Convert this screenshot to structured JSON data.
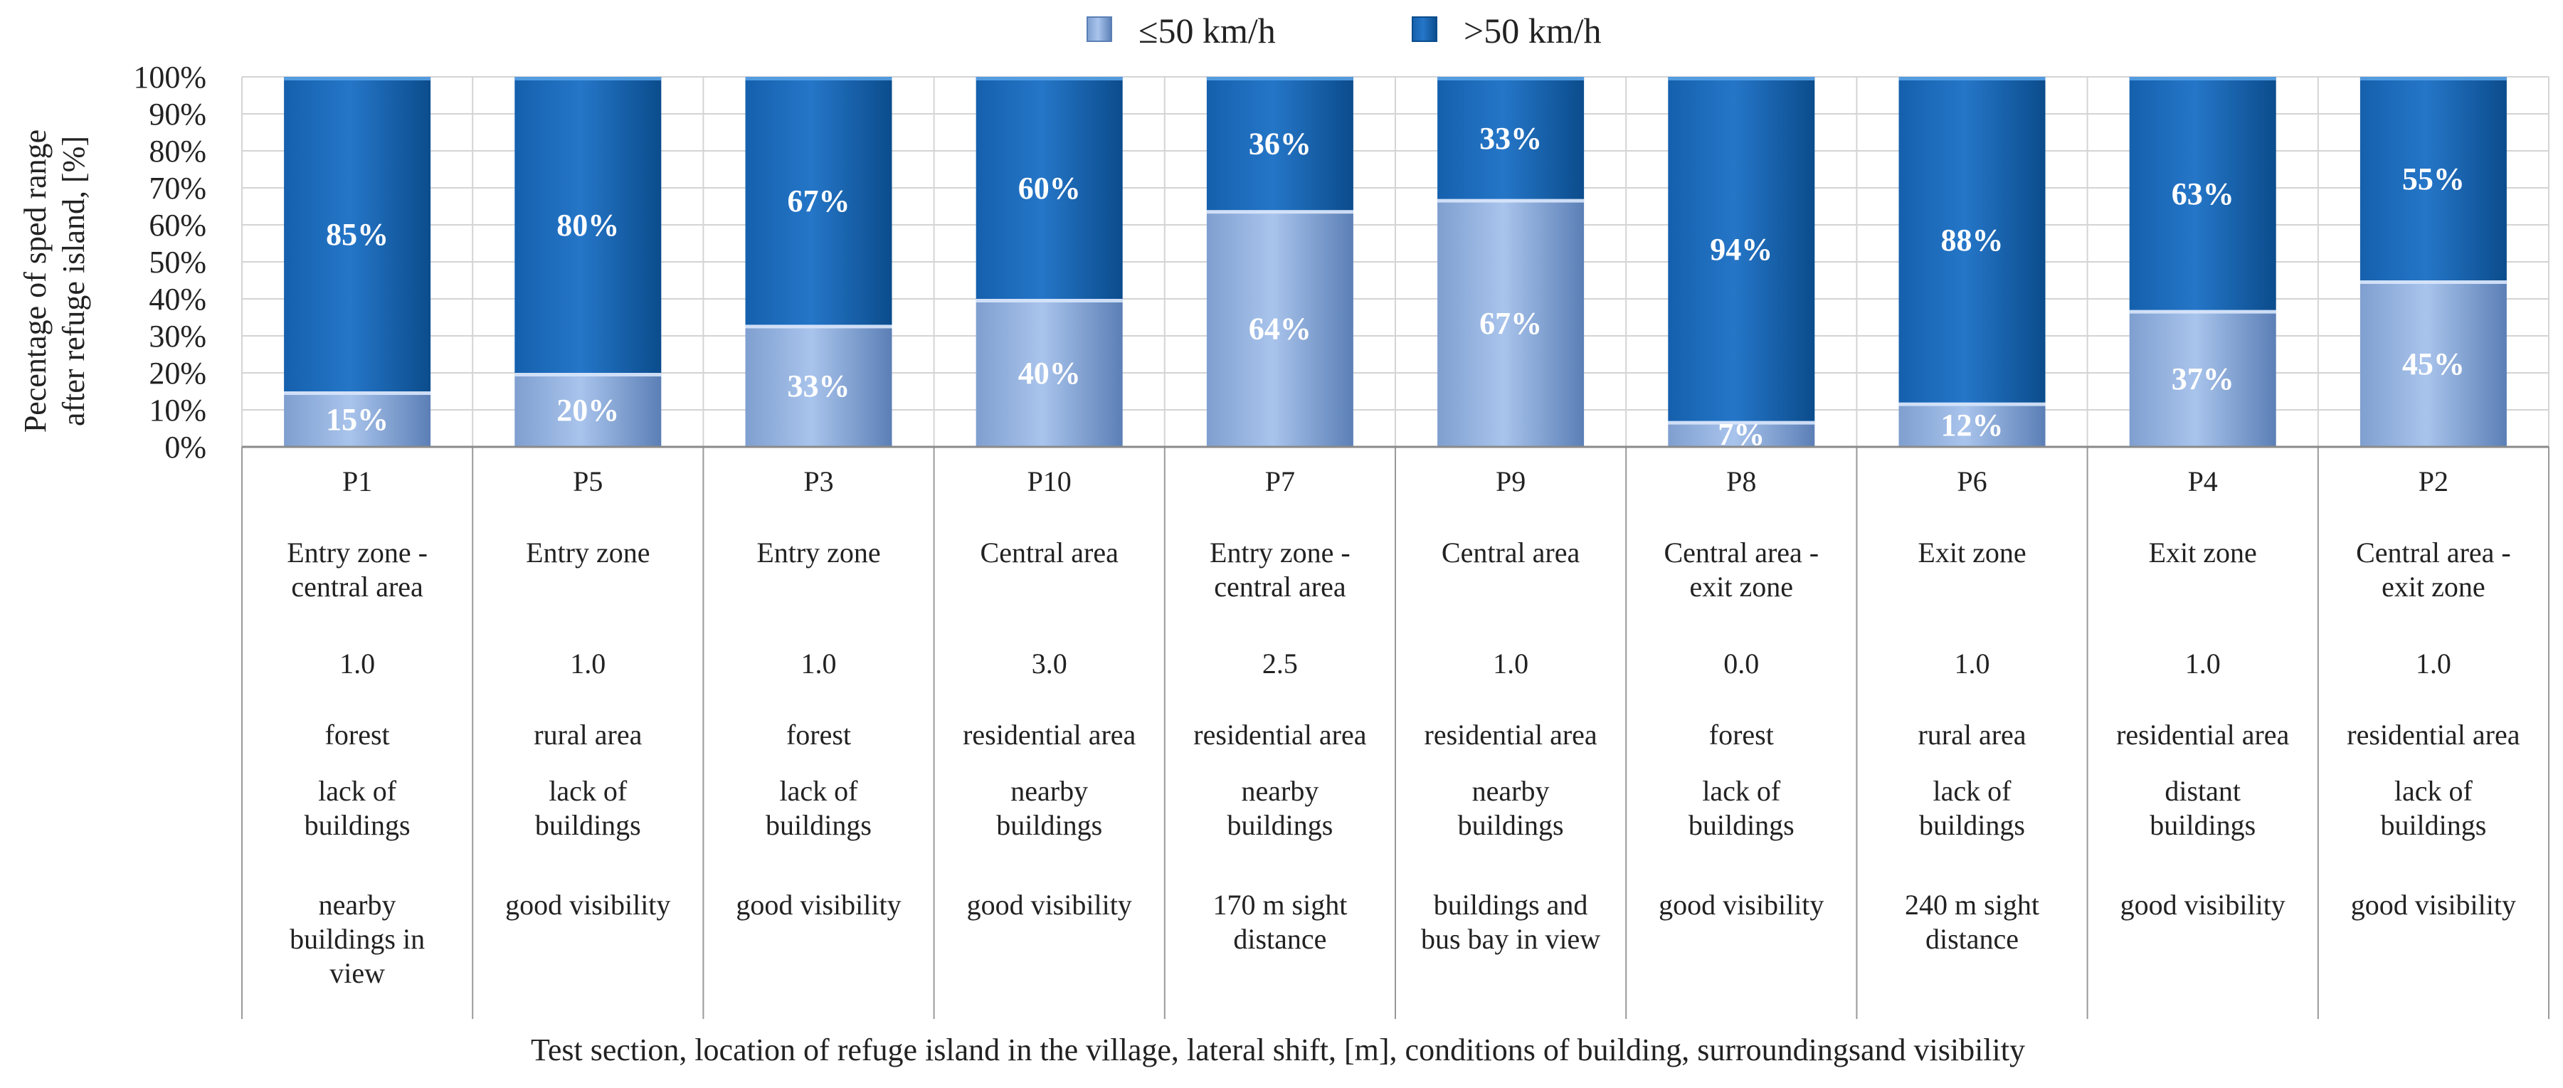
{
  "colors": {
    "low_light": "#a9c4ec",
    "low_dark": "#5b7fb6",
    "high_light": "#2576c8",
    "high_dark": "#0b4c8c",
    "grid": "#d4d4d4",
    "table_line": "#9a9a9a"
  },
  "chart_data": {
    "type": "bar",
    "stacked": true,
    "title": "",
    "ylabel": "Pecentage of sped range after refuge island, [%]",
    "ylabel_lines": [
      "Pecentage of sped range",
      "after refuge island, [%]"
    ],
    "xlabel": "Test section, location of refuge island in the village, lateral shift, [m],  conditions of building,  surroundingsand visibility",
    "ylim": [
      0,
      100
    ],
    "yticks": [
      "0%",
      "10%",
      "20%",
      "30%",
      "40%",
      "50%",
      "60%",
      "70%",
      "80%",
      "90%",
      "100%"
    ],
    "grid": true,
    "legend_position": "top",
    "categories": [
      "P1",
      "P5",
      "P3",
      "P10",
      "P7",
      "P9",
      "P8",
      "P6",
      "P4",
      "P2"
    ],
    "series": [
      {
        "name": "≤50 km/h",
        "values": [
          15,
          20,
          33,
          40,
          64,
          67,
          7,
          12,
          37,
          45
        ],
        "labels": [
          "15%",
          "20%",
          "33%",
          "40%",
          "64%",
          "67%",
          "7%",
          "12%",
          "37%",
          "45%"
        ]
      },
      {
        "name": ">50 km/h",
        "values": [
          85,
          80,
          67,
          60,
          36,
          33,
          94,
          88,
          63,
          55
        ],
        "labels": [
          "85%",
          "80%",
          "67%",
          "60%",
          "36%",
          "33%",
          "94%",
          "88%",
          "63%",
          "55%"
        ]
      }
    ],
    "table": {
      "location": [
        [
          "Entry zone -",
          "central area"
        ],
        [
          "Entry zone"
        ],
        [
          "Entry zone"
        ],
        [
          "Central area"
        ],
        [
          "Entry zone -",
          "central area"
        ],
        [
          "Central area"
        ],
        [
          "Central area -",
          "exit zone"
        ],
        [
          "Exit zone"
        ],
        [
          "Exit zone"
        ],
        [
          "Central area -",
          "exit zone"
        ]
      ],
      "lateral_shift": [
        "1.0",
        "1.0",
        "1.0",
        "3.0",
        "2.5",
        "1.0",
        "0.0",
        "1.0",
        "1.0",
        "1.0"
      ],
      "surroundings": [
        "forest",
        "rural area",
        "forest",
        "residential area",
        "residential area",
        "residential area",
        "forest",
        "rural area",
        "residential area",
        "residential area"
      ],
      "building": [
        [
          "lack of",
          "buildings"
        ],
        [
          "lack of",
          "buildings"
        ],
        [
          "lack of",
          "buildings"
        ],
        [
          "nearby",
          "buildings"
        ],
        [
          "nearby",
          "buildings"
        ],
        [
          "nearby",
          "buildings"
        ],
        [
          "lack of",
          "buildings"
        ],
        [
          "lack of",
          "buildings"
        ],
        [
          "distant",
          "buildings"
        ],
        [
          "lack of",
          "buildings"
        ]
      ],
      "visibility": [
        [
          "nearby",
          "buildings in",
          "view"
        ],
        [
          "good visibility"
        ],
        [
          "good visibility"
        ],
        [
          "good visibility"
        ],
        [
          "170 m sight",
          "distance"
        ],
        [
          "buildings and",
          "bus bay in view"
        ],
        [
          "good visibility"
        ],
        [
          "240 m sight",
          "distance"
        ],
        [
          "good visibility"
        ],
        [
          "good visibility"
        ]
      ]
    }
  }
}
